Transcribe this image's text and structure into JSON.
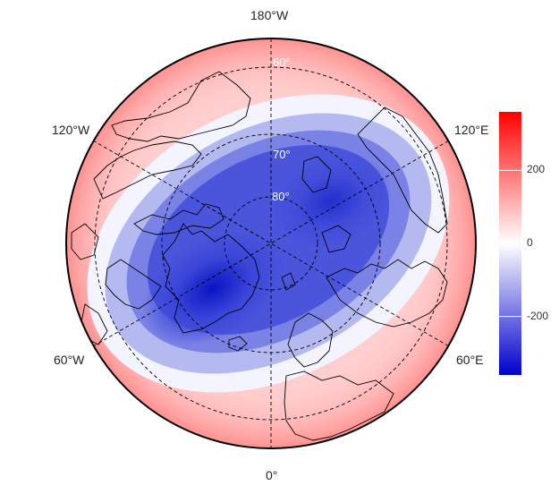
{
  "map": {
    "projection": "north-polar-stereographic",
    "longitude_labels": {
      "top": "180°W",
      "bottom": "0°",
      "upper_left": "120°W",
      "upper_right": "120°E",
      "lower_left": "60°W",
      "lower_right": "60°E"
    },
    "latitude_labels": [
      "60°",
      "70°",
      "80°"
    ],
    "field": {
      "description_pattern": "negative center over Arctic/Greenland, positive ring at lower latitudes",
      "min_value": -280,
      "max_value": 340
    },
    "colors": {
      "negative": "#0000cc",
      "zero": "#ffffff",
      "positive": "#ff0000",
      "coastline": "#000000",
      "graticule": "#000000"
    }
  },
  "colorbar": {
    "ticks": [
      "200",
      "0",
      "-200"
    ],
    "tick_values": [
      200,
      0,
      -200
    ],
    "range": [
      -360,
      360
    ]
  }
}
